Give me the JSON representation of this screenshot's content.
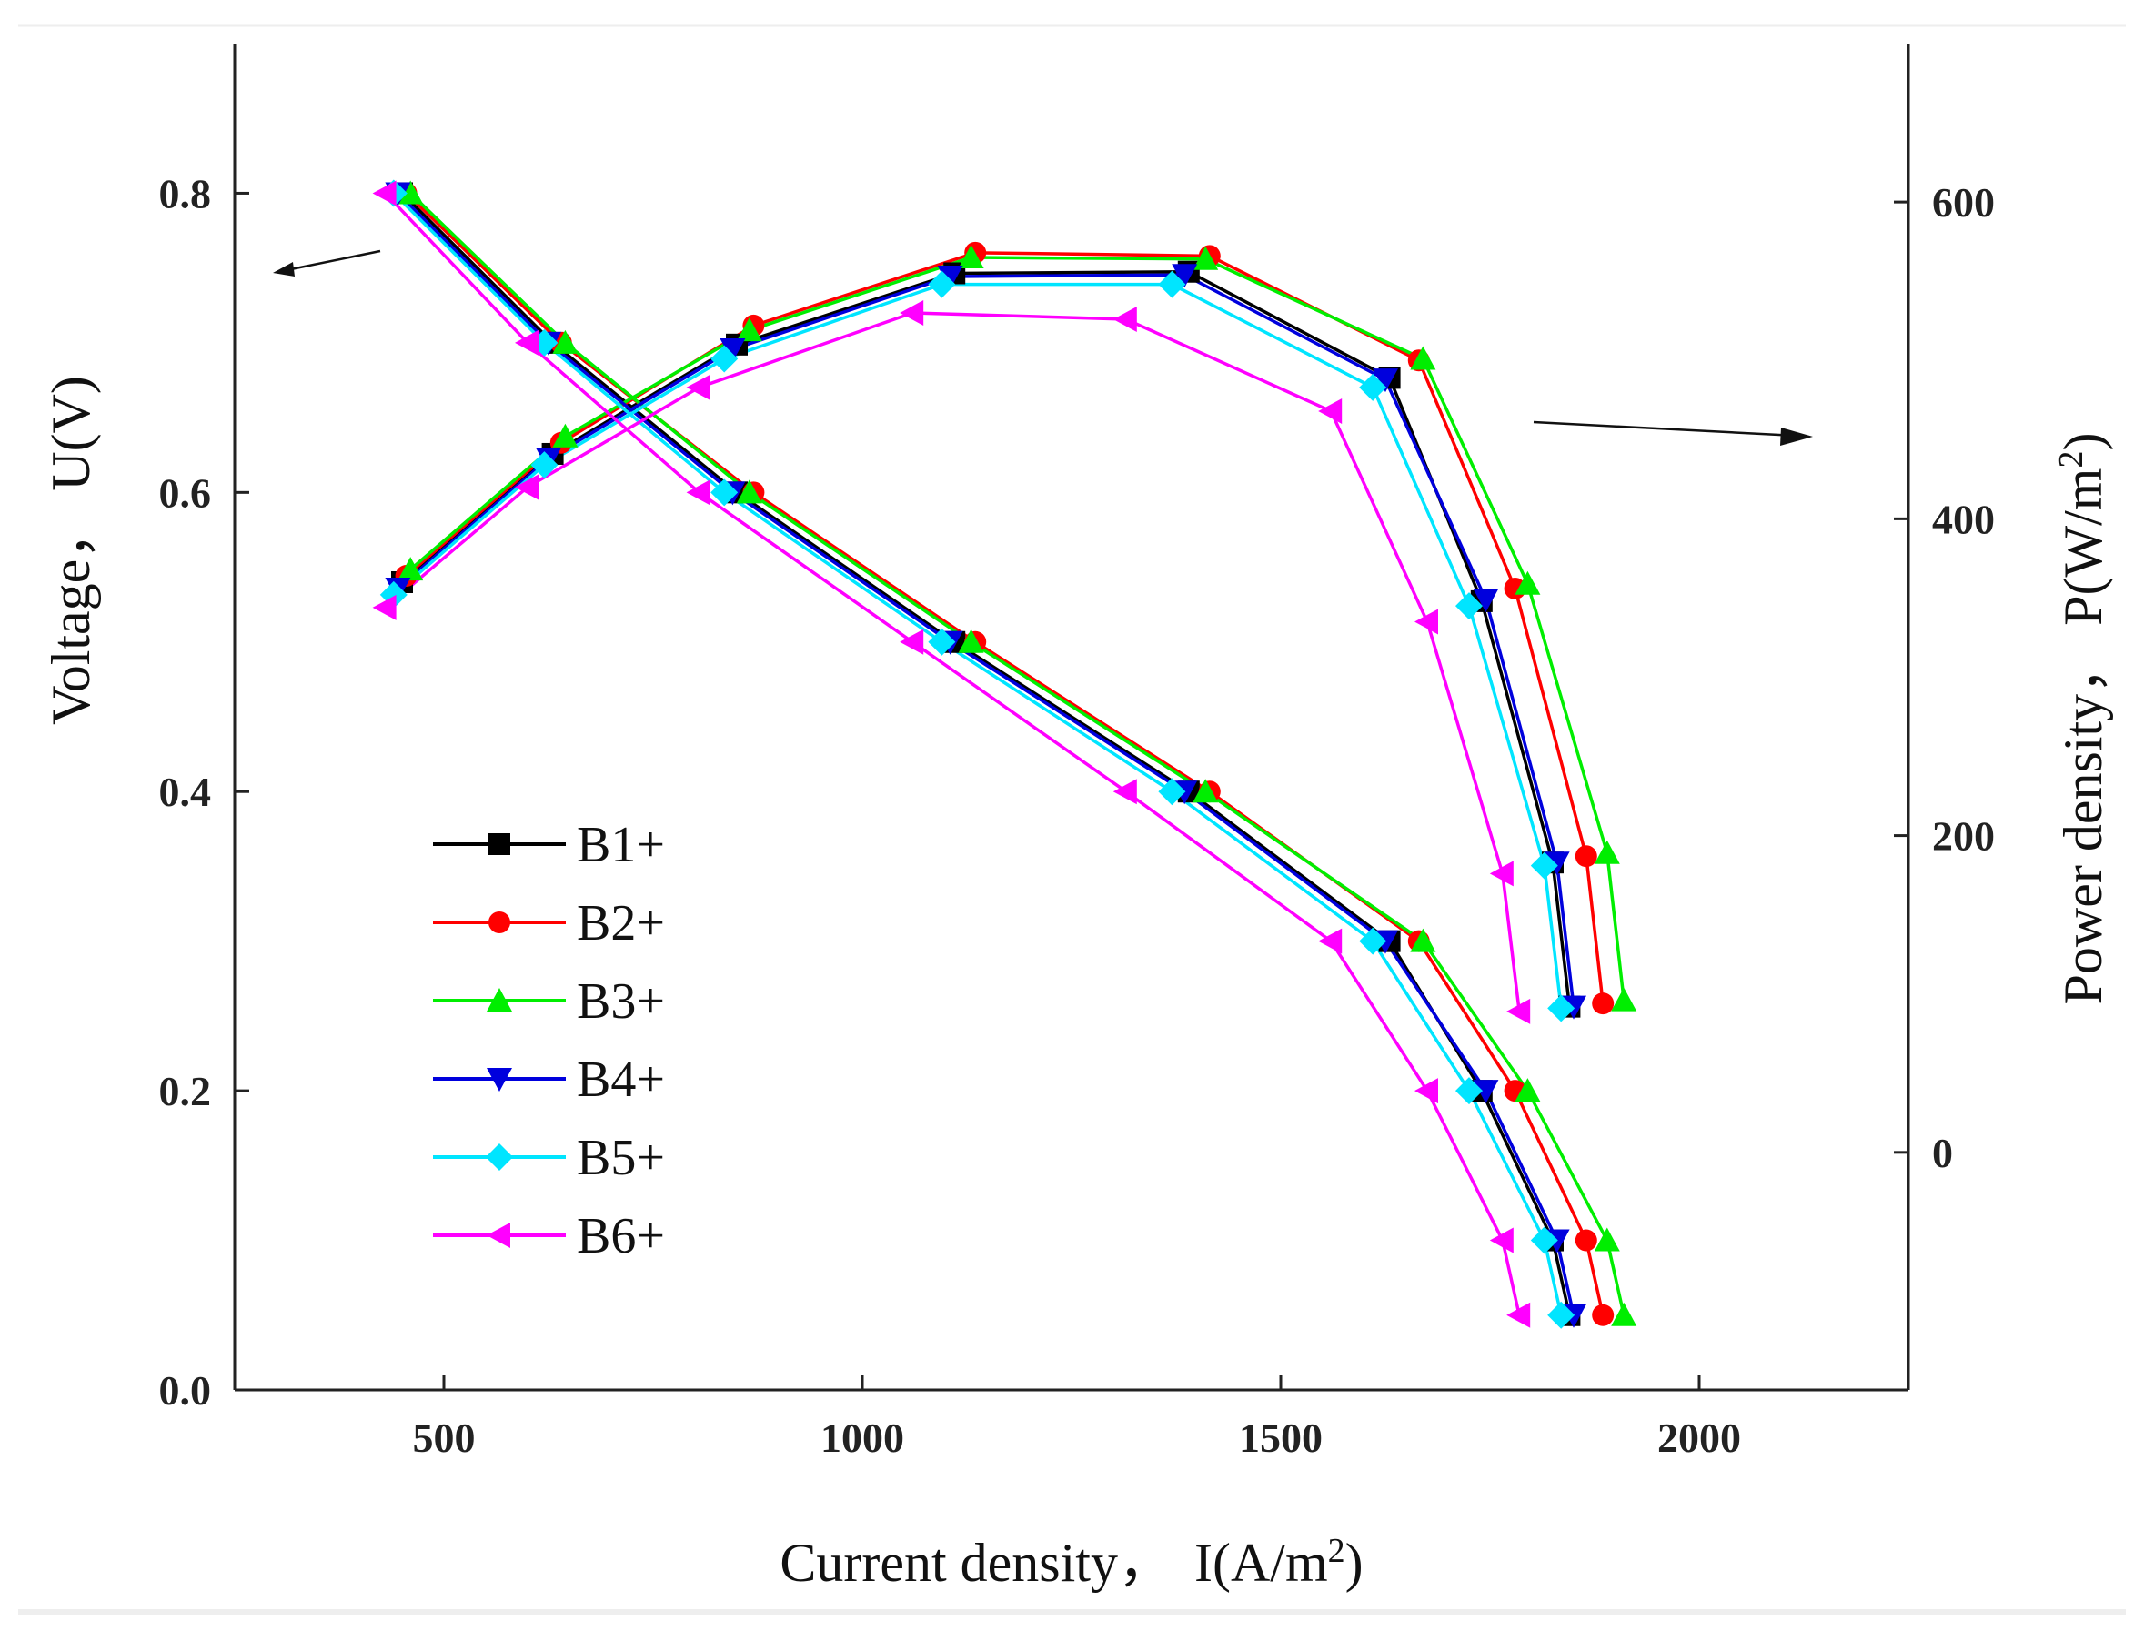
{
  "chart_data": {
    "type": "line",
    "xlabel": "Current density，",
    "xlabel_symbol": "I(A/m",
    "xlabel_sup": "2",
    "xlabel_close": ")",
    "ylabel_left": "Voltage，  U(V)",
    "ylabel_right": "Power density，  P(W/m",
    "ylabel_right_sup": "2",
    "ylabel_right_close": ")",
    "xlim": [
      250,
      2250
    ],
    "ylim_left": [
      0,
      0.9
    ],
    "ylim_right": [
      -150,
      700
    ],
    "x_ticks": [
      500,
      1000,
      1500,
      2000
    ],
    "x_tick_labels": [
      "500",
      "1000",
      "1500",
      "2000"
    ],
    "y_left_ticks": [
      0,
      0.2,
      0.4,
      0.6,
      0.8
    ],
    "y_left_tick_labels": [
      "0.0",
      "0.2",
      "0.4",
      "0.6",
      "0.8"
    ],
    "y_right_ticks": [
      0,
      200,
      400,
      600
    ],
    "y_right_tick_labels": [
      "0",
      "200",
      "400",
      "600"
    ],
    "legend_position": "lower-left",
    "series": [
      {
        "name": "B1+",
        "color": "#000000",
        "marker": "square",
        "voltage": {
          "x": [
            450,
            630,
            850,
            1110,
            1390,
            1630,
            1740,
            1825,
            1845
          ],
          "y": [
            0.8,
            0.7,
            0.6,
            0.5,
            0.4,
            0.3,
            0.2,
            0.1,
            0.05
          ]
        },
        "power": {
          "x": [
            450,
            630,
            850,
            1110,
            1390,
            1630,
            1740,
            1825,
            1845
          ],
          "y": [
            360,
            441,
            510,
            555,
            556,
            489,
            348,
            183,
            92
          ]
        }
      },
      {
        "name": "B2+",
        "color": "#ff0000",
        "marker": "circle",
        "voltage": {
          "x": [
            455,
            640,
            870,
            1135,
            1415,
            1665,
            1780,
            1865,
            1885
          ],
          "y": [
            0.8,
            0.7,
            0.6,
            0.5,
            0.4,
            0.3,
            0.2,
            0.1,
            0.05
          ]
        },
        "power": {
          "x": [
            455,
            640,
            870,
            1135,
            1415,
            1665,
            1780,
            1865,
            1885
          ],
          "y": [
            364,
            448,
            522,
            568,
            566,
            500,
            356,
            187,
            94
          ]
        }
      },
      {
        "name": "B3+",
        "color": "#00ee00",
        "marker": "triangle-up",
        "voltage": {
          "x": [
            460,
            645,
            865,
            1130,
            1410,
            1670,
            1795,
            1890,
            1910
          ],
          "y": [
            0.8,
            0.7,
            0.6,
            0.5,
            0.4,
            0.3,
            0.2,
            0.1,
            0.05
          ]
        },
        "power": {
          "x": [
            460,
            645,
            865,
            1130,
            1410,
            1670,
            1795,
            1890,
            1910
          ],
          "y": [
            368,
            452,
            519,
            565,
            564,
            501,
            359,
            189,
            96
          ]
        }
      },
      {
        "name": "B4+",
        "color": "#0000dd",
        "marker": "triangle-down",
        "voltage": {
          "x": [
            445,
            625,
            845,
            1105,
            1385,
            1625,
            1745,
            1830,
            1850
          ],
          "y": [
            0.8,
            0.7,
            0.6,
            0.5,
            0.4,
            0.3,
            0.2,
            0.1,
            0.05
          ]
        },
        "power": {
          "x": [
            445,
            625,
            845,
            1105,
            1385,
            1625,
            1745,
            1830,
            1850
          ],
          "y": [
            356,
            438,
            507,
            553,
            554,
            488,
            349,
            183,
            92
          ]
        }
      },
      {
        "name": "B5+",
        "color": "#00e5ff",
        "marker": "diamond",
        "voltage": {
          "x": [
            440,
            620,
            835,
            1095,
            1370,
            1610,
            1725,
            1815,
            1835
          ],
          "y": [
            0.8,
            0.7,
            0.6,
            0.5,
            0.4,
            0.3,
            0.2,
            0.1,
            0.05
          ]
        },
        "power": {
          "x": [
            440,
            620,
            835,
            1095,
            1370,
            1610,
            1725,
            1815,
            1835
          ],
          "y": [
            352,
            434,
            501,
            548,
            548,
            483,
            345,
            181,
            91
          ]
        }
      },
      {
        "name": "B6+",
        "color": "#ff00ff",
        "marker": "triangle-left",
        "voltage": {
          "x": [
            430,
            600,
            805,
            1060,
            1315,
            1560,
            1675,
            1765,
            1785
          ],
          "y": [
            0.8,
            0.7,
            0.6,
            0.5,
            0.4,
            0.3,
            0.2,
            0.1,
            0.05
          ]
        },
        "power": {
          "x": [
            430,
            600,
            805,
            1060,
            1315,
            1560,
            1675,
            1765,
            1785
          ],
          "y": [
            344,
            420,
            483,
            530,
            526,
            468,
            335,
            176,
            89
          ]
        }
      }
    ]
  }
}
